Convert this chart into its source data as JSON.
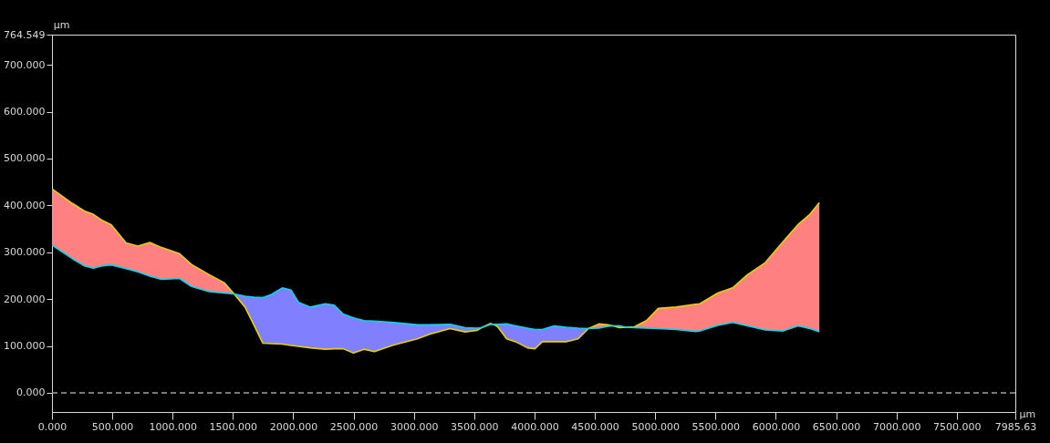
{
  "chart_data": {
    "type": "line",
    "xlabel": "µm",
    "ylabel": "µm",
    "xlim": [
      0,
      7985.63
    ],
    "ylim": [
      -41,
      764.549
    ],
    "xticks": [
      {
        "value": 0,
        "label": "0.000"
      },
      {
        "value": 500,
        "label": "500.000"
      },
      {
        "value": 1000,
        "label": "1000.000"
      },
      {
        "value": 1500,
        "label": "1500.000"
      },
      {
        "value": 2000,
        "label": "2000.000"
      },
      {
        "value": 2500,
        "label": "2500.000"
      },
      {
        "value": 3000,
        "label": "3000.000"
      },
      {
        "value": 3500,
        "label": "3500.000"
      },
      {
        "value": 4000,
        "label": "4000.000"
      },
      {
        "value": 4500,
        "label": "4500.000"
      },
      {
        "value": 5000,
        "label": "5000.000"
      },
      {
        "value": 5500,
        "label": "5500.000"
      },
      {
        "value": 6000,
        "label": "6000.000"
      },
      {
        "value": 6500,
        "label": "6500.000"
      },
      {
        "value": 7000,
        "label": "7000.000"
      },
      {
        "value": 7500,
        "label": "7500.000"
      },
      {
        "value": 7985.63,
        "label": "7985.63"
      }
    ],
    "yticks": [
      {
        "value": 0,
        "label": "0.000"
      },
      {
        "value": 100,
        "label": "100.000"
      },
      {
        "value": 200,
        "label": "200.000"
      },
      {
        "value": 300,
        "label": "300.000"
      },
      {
        "value": 400,
        "label": "400.000"
      },
      {
        "value": 500,
        "label": "500.000"
      },
      {
        "value": 600,
        "label": "600.000"
      },
      {
        "value": 700,
        "label": "700.000"
      },
      {
        "value": 764.549,
        "label": "764.549"
      }
    ],
    "grid": false,
    "line_style": "solid",
    "marker": "none",
    "ref_lines": [
      {
        "axis": "y",
        "value": 0,
        "color": "#a0a0a0",
        "line_style": "dashed"
      }
    ],
    "x": [
      2,
      170,
      268,
      342,
      416,
      490,
      614,
      712,
      811,
      909,
      1057,
      1156,
      1304,
      1427,
      1510,
      1600,
      1673,
      1747,
      1820,
      1908,
      1982,
      2043,
      2142,
      2265,
      2339,
      2413,
      2499,
      2586,
      2672,
      2832,
      3029,
      3128,
      3300,
      3424,
      3522,
      3560,
      3633,
      3660,
      3695,
      3769,
      3843,
      3941,
      4003,
      4065,
      4163,
      4262,
      4360,
      4446,
      4533,
      4607,
      4650,
      4705,
      4760,
      4828,
      4927,
      5026,
      5174,
      5334,
      5371,
      5518,
      5642,
      5765,
      5913,
      6061,
      6184,
      6283,
      6361
    ],
    "series": [
      {
        "type": "area",
        "color": "#ff8080",
        "values": [
          435,
          404,
          388,
          381,
          368,
          359,
          320,
          313,
          321,
          310,
          297,
          274,
          252,
          235,
          211,
          null,
          null,
          null,
          null,
          null,
          null,
          null,
          null,
          null,
          null,
          null,
          null,
          null,
          null,
          null,
          null,
          null,
          null,
          null,
          null,
          139,
          148,
          146,
          null,
          null,
          null,
          null,
          null,
          null,
          null,
          null,
          null,
          137,
          147,
          145,
          143,
          null,
          140,
          141,
          154,
          180,
          183,
          189,
          190,
          213,
          224,
          252,
          278,
          323,
          359,
          381,
          406
        ]
      },
      {
        "type": "area",
        "color": "#8080ff",
        "values": [
          null,
          null,
          null,
          null,
          null,
          null,
          null,
          null,
          null,
          null,
          null,
          null,
          null,
          null,
          211,
          206,
          204,
          203,
          210,
          224,
          219,
          193,
          183,
          190,
          187,
          168,
          160,
          154,
          153,
          150,
          145,
          145,
          146,
          139,
          138,
          139,
          null,
          146,
          146,
          147,
          143,
          138,
          135,
          135,
          143,
          140,
          138,
          137,
          null,
          null,
          143,
          143,
          140,
          null,
          null,
          null,
          null,
          null,
          null,
          null,
          null,
          null,
          null,
          null,
          null,
          null,
          null
        ]
      },
      {
        "color": "#e8d000",
        "values": [
          435,
          404,
          388,
          381,
          368,
          359,
          320,
          313,
          321,
          310,
          297,
          274,
          252,
          235,
          211,
          183,
          145,
          106,
          105,
          104,
          101,
          99,
          96,
          93,
          94,
          94,
          85,
          93,
          88,
          102,
          115,
          125,
          137,
          130,
          133,
          139,
          148,
          146,
          141,
          115,
          109,
          96,
          94,
          109,
          109,
          109,
          115,
          137,
          147,
          145,
          143,
          139,
          140,
          141,
          154,
          180,
          183,
          189,
          190,
          213,
          224,
          252,
          278,
          323,
          359,
          381,
          406
        ]
      },
      {
        "color": "#00d8f0",
        "values": [
          315,
          286,
          271,
          266,
          271,
          273,
          265,
          258,
          249,
          242,
          244,
          227,
          216,
          213,
          211,
          206,
          204,
          203,
          210,
          224,
          219,
          193,
          183,
          190,
          187,
          168,
          160,
          154,
          153,
          150,
          145,
          145,
          146,
          139,
          138,
          139,
          146,
          146,
          146,
          147,
          143,
          138,
          135,
          135,
          143,
          140,
          138,
          137,
          138,
          142,
          143,
          143,
          140,
          139,
          138,
          137,
          135,
          131,
          132,
          144,
          150,
          143,
          134,
          132,
          143,
          137,
          130
        ]
      }
    ]
  }
}
